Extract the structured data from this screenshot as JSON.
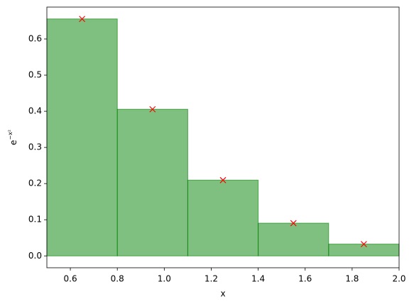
{
  "chart_data": {
    "type": "histogram",
    "bins": [
      0.5,
      0.8,
      1.1,
      1.4,
      1.7,
      2.0
    ],
    "values": [
      0.6554,
      0.4056,
      0.2096,
      0.0905,
      0.0326
    ],
    "color": "#008000",
    "markers": {
      "x": [
        0.65,
        0.95,
        1.25,
        1.55,
        1.85
      ],
      "values": [
        0.6554,
        0.4056,
        0.2096,
        0.0905,
        0.0326
      ],
      "color": "#ff0000"
    },
    "xlabel": "x",
    "ylabel": {
      "base": "e",
      "exponent": "−x²"
    },
    "xlim": [
      0.5,
      2.0
    ],
    "ylim": [
      -0.0328,
      0.6882
    ],
    "xticks": [
      0.6,
      0.8,
      {
        "value": 1.0,
        "label": "1.0"
      },
      1.2,
      1.4,
      1.6,
      1.8,
      {
        "value": 2.0,
        "label": "2.0"
      }
    ],
    "yticks": [
      {
        "value": 0,
        "label": "0.0"
      },
      0.1,
      0.2,
      0.3,
      0.4,
      0.5,
      0.6
    ]
  }
}
